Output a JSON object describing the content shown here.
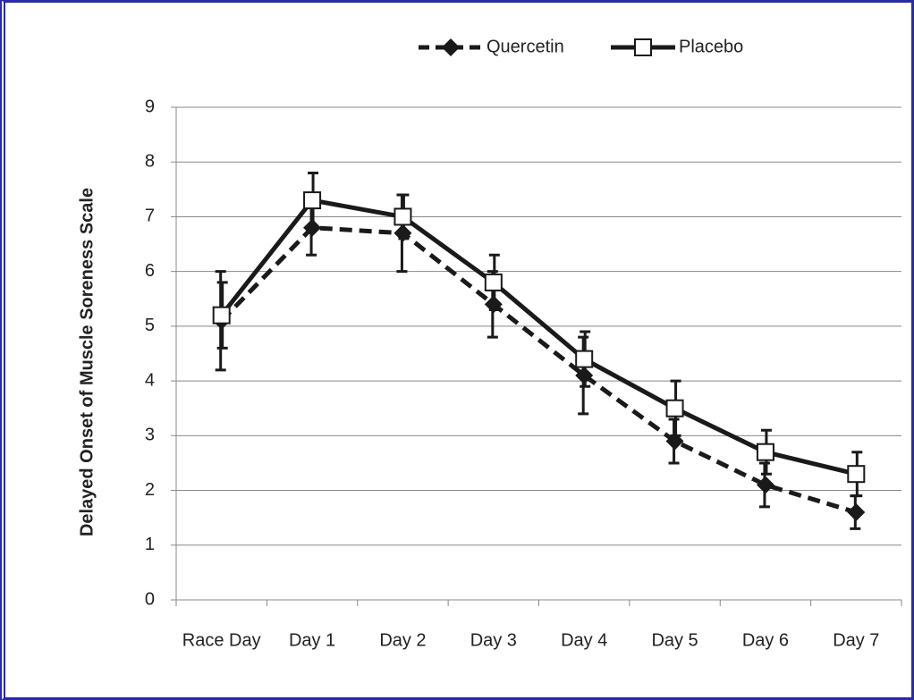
{
  "chart_data": {
    "type": "line",
    "y_label": "Delayed Onset of Muscle Soreness Scale",
    "categories": [
      "Race Day",
      "Day 1",
      "Day 2",
      "Day 3",
      "Day 4",
      "Day 5",
      "Day 6",
      "Day 7"
    ],
    "series": [
      {
        "name": "Quercetin",
        "color": "#1a1a1a",
        "dash": true,
        "marker": "diamond",
        "values": [
          5.1,
          6.8,
          6.7,
          5.4,
          4.1,
          2.9,
          2.1,
          1.6
        ],
        "errors": [
          0.9,
          0.5,
          0.7,
          0.6,
          0.7,
          0.4,
          0.4,
          0.3
        ]
      },
      {
        "name": "Placebo",
        "color": "#1a1a1a",
        "dash": false,
        "marker": "square",
        "values": [
          5.2,
          7.3,
          7.0,
          5.8,
          4.4,
          3.5,
          2.7,
          2.3
        ],
        "errors": [
          0.6,
          0.5,
          0.4,
          0.5,
          0.5,
          0.5,
          0.4,
          0.4
        ]
      }
    ],
    "ylim": [
      0,
      9
    ],
    "yticks": [
      0,
      1,
      2,
      3,
      4,
      5,
      6,
      7,
      8,
      9
    ],
    "grid": true,
    "legend": "top"
  }
}
